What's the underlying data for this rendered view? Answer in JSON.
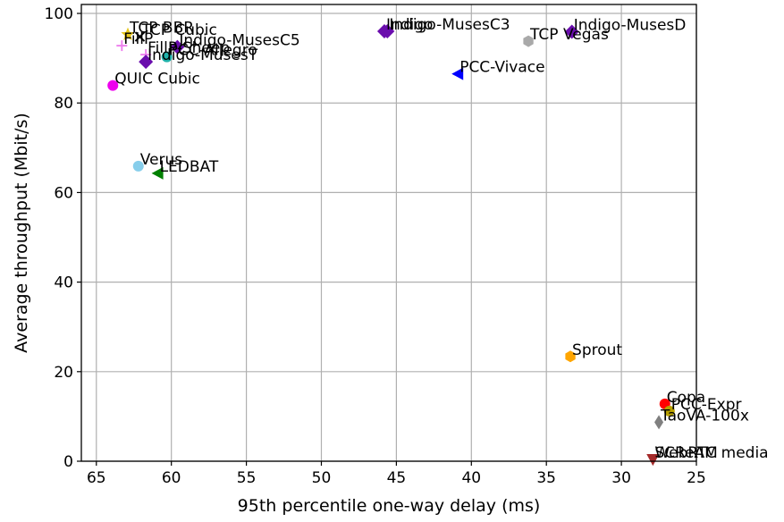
{
  "chart_data": {
    "type": "scatter",
    "title": "",
    "xlabel": "95th percentile one-way delay (ms)",
    "ylabel": "Average throughput (Mbit/s)",
    "xlim": [
      66,
      25
    ],
    "ylim": [
      0,
      102
    ],
    "x_inverted": true,
    "grid": true,
    "xticks": [
      65,
      60,
      55,
      50,
      45,
      40,
      35,
      30,
      25
    ],
    "yticks": [
      0,
      20,
      40,
      60,
      80,
      100
    ],
    "points": [
      {
        "name": "TCP BBR",
        "x": 62.9,
        "y": 95.3,
        "color": "#e6c619",
        "marker": "star"
      },
      {
        "name": "TCP Cubic",
        "x": 62.1,
        "y": 94.8,
        "color": "#000000",
        "marker": "x"
      },
      {
        "name": "FillP",
        "x": 63.3,
        "y": 92.8,
        "color": "#ee82ee",
        "marker": "plus"
      },
      {
        "name": "Indigo-MusesC5",
        "x": 59.6,
        "y": 92.5,
        "color": "#6a0dad",
        "marker": "diamond"
      },
      {
        "name": "FillP-Sheep",
        "x": 61.7,
        "y": 90.8,
        "color": "#ee82ee",
        "marker": "plus"
      },
      {
        "name": "PCC-Allegro",
        "x": 60.3,
        "y": 90.3,
        "color": "#20b2aa",
        "marker": "circle"
      },
      {
        "name": "Indigo-MusesT",
        "x": 61.7,
        "y": 89.2,
        "color": "#6a0dad",
        "marker": "diamond"
      },
      {
        "name": "QUIC Cubic",
        "x": 63.9,
        "y": 83.9,
        "color": "#ee00ee",
        "marker": "circle"
      },
      {
        "name": "Indigo",
        "x": 45.8,
        "y": 96.0,
        "color": "#6a0dad",
        "marker": "diamond"
      },
      {
        "name": "Indigo-MusesC3",
        "x": 45.6,
        "y": 96.0,
        "color": "#6a0dad",
        "marker": "diamond"
      },
      {
        "name": "Indigo-MusesD",
        "x": 33.3,
        "y": 95.9,
        "color": "#6a0dad",
        "marker": "diamond"
      },
      {
        "name": "TCP Vegas",
        "x": 36.2,
        "y": 93.8,
        "color": "#a9a9a9",
        "marker": "hexagon"
      },
      {
        "name": "PCC-Vivace",
        "x": 40.9,
        "y": 86.5,
        "color": "#0000ff",
        "marker": "triangle-left"
      },
      {
        "name": "Verus",
        "x": 62.2,
        "y": 65.9,
        "color": "#87ceeb",
        "marker": "circle"
      },
      {
        "name": "LEDBAT",
        "x": 60.9,
        "y": 64.3,
        "color": "#008000",
        "marker": "triangle-left"
      },
      {
        "name": "Sprout",
        "x": 33.4,
        "y": 23.4,
        "color": "#ffa500",
        "marker": "hexagon"
      },
      {
        "name": "Copa",
        "x": 27.1,
        "y": 12.8,
        "color": "#ff0000",
        "marker": "circle"
      },
      {
        "name": "PCC-Expr",
        "x": 26.8,
        "y": 11.2,
        "color": "#b8a000",
        "marker": "circle"
      },
      {
        "name": "TaoVA-100x",
        "x": 27.5,
        "y": 8.7,
        "color": "#808080",
        "marker": "thin-diamond"
      },
      {
        "name": "SCReAM",
        "x": 27.9,
        "y": 0.4,
        "color": "#a52a2a",
        "marker": "triangle-down"
      },
      {
        "name": "WebRTC media",
        "x": 27.9,
        "y": 0.4,
        "color": "#a52a2a",
        "marker": "triangle-down"
      }
    ]
  }
}
